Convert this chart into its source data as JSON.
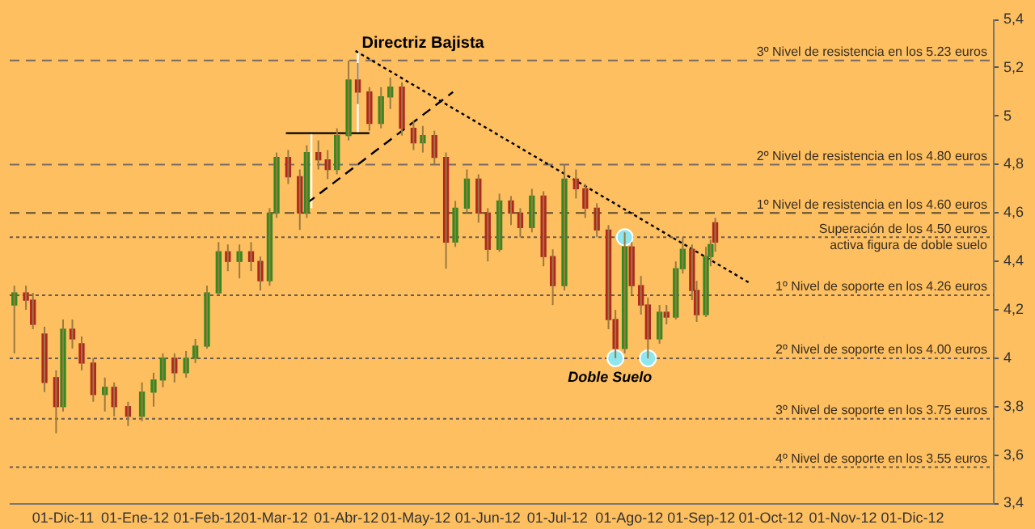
{
  "chart_data": {
    "type": "candlestick",
    "legend": false,
    "x": [
      "2011-11-10",
      "2011-11-15",
      "2011-11-18",
      "2011-11-23",
      "2011-11-28",
      "2011-12-01",
      "2011-12-05",
      "2011-12-09",
      "2011-12-14",
      "2011-12-19",
      "2011-12-23",
      "2011-12-29",
      "2012-01-04",
      "2012-01-09",
      "2012-01-13",
      "2012-01-18",
      "2012-01-23",
      "2012-01-27",
      "2012-02-01",
      "2012-02-06",
      "2012-02-10",
      "2012-02-15",
      "2012-02-20",
      "2012-02-24",
      "2012-02-28",
      "2012-03-02",
      "2012-03-07",
      "2012-03-12",
      "2012-03-15",
      "2012-03-20",
      "2012-03-24",
      "2012-03-28",
      "2012-04-02",
      "2012-04-06",
      "2012-04-11",
      "2012-04-16",
      "2012-04-20",
      "2012-04-25",
      "2012-04-30",
      "2012-05-04",
      "2012-05-09",
      "2012-05-14",
      "2012-05-18",
      "2012-05-23",
      "2012-05-28",
      "2012-06-01",
      "2012-06-06",
      "2012-06-11",
      "2012-06-15",
      "2012-06-20",
      "2012-06-25",
      "2012-06-29",
      "2012-07-04",
      "2012-07-09",
      "2012-07-13",
      "2012-07-18",
      "2012-07-23",
      "2012-07-26",
      "2012-07-30",
      "2012-08-02",
      "2012-08-06",
      "2012-08-09",
      "2012-08-14",
      "2012-08-17",
      "2012-08-21",
      "2012-08-24",
      "2012-08-28",
      "2012-08-30",
      "2012-09-03",
      "2012-09-05",
      "2012-09-07"
    ],
    "ohlc": [
      [
        4.22,
        4.3,
        4.02,
        4.27
      ],
      [
        4.27,
        4.3,
        4.2,
        4.24
      ],
      [
        4.24,
        4.27,
        4.12,
        4.14
      ],
      [
        4.1,
        4.13,
        3.86,
        3.9
      ],
      [
        3.92,
        3.95,
        3.69,
        3.8
      ],
      [
        3.8,
        4.16,
        3.78,
        4.12
      ],
      [
        4.12,
        4.16,
        4.04,
        4.08
      ],
      [
        4.06,
        4.09,
        3.95,
        3.98
      ],
      [
        3.98,
        4.0,
        3.82,
        3.85
      ],
      [
        3.85,
        3.92,
        3.78,
        3.88
      ],
      [
        3.88,
        3.9,
        3.76,
        3.8
      ],
      [
        3.8,
        3.82,
        3.72,
        3.76
      ],
      [
        3.76,
        3.9,
        3.74,
        3.86
      ],
      [
        3.86,
        3.94,
        3.8,
        3.91
      ],
      [
        3.91,
        4.02,
        3.88,
        4.0
      ],
      [
        4.0,
        4.02,
        3.9,
        3.94
      ],
      [
        3.94,
        4.03,
        3.92,
        4.0
      ],
      [
        4.0,
        4.08,
        3.98,
        4.05
      ],
      [
        4.05,
        4.3,
        4.04,
        4.27
      ],
      [
        4.27,
        4.48,
        4.26,
        4.44
      ],
      [
        4.44,
        4.47,
        4.36,
        4.4
      ],
      [
        4.4,
        4.47,
        4.33,
        4.44
      ],
      [
        4.44,
        4.48,
        4.36,
        4.4
      ],
      [
        4.4,
        4.42,
        4.28,
        4.32
      ],
      [
        4.32,
        4.62,
        4.3,
        4.6
      ],
      [
        4.6,
        4.85,
        4.58,
        4.83
      ],
      [
        4.83,
        4.86,
        4.72,
        4.75
      ],
      [
        4.75,
        4.78,
        4.53,
        4.6
      ],
      [
        4.6,
        4.88,
        4.58,
        4.85
      ],
      [
        4.85,
        4.9,
        4.78,
        4.82
      ],
      [
        4.82,
        4.86,
        4.74,
        4.78
      ],
      [
        4.78,
        4.95,
        4.76,
        4.92
      ],
      [
        4.92,
        5.23,
        4.9,
        5.15
      ],
      [
        5.15,
        5.22,
        5.05,
        5.1
      ],
      [
        5.1,
        5.12,
        4.94,
        4.97
      ],
      [
        4.97,
        5.12,
        4.95,
        5.08
      ],
      [
        5.08,
        5.16,
        5.03,
        5.12
      ],
      [
        5.12,
        5.14,
        4.92,
        4.95
      ],
      [
        4.95,
        4.98,
        4.86,
        4.89
      ],
      [
        4.89,
        4.96,
        4.85,
        4.92
      ],
      [
        4.92,
        4.94,
        4.8,
        4.83
      ],
      [
        4.83,
        4.85,
        4.37,
        4.48
      ],
      [
        4.48,
        4.65,
        4.46,
        4.62
      ],
      [
        4.62,
        4.78,
        4.6,
        4.74
      ],
      [
        4.74,
        4.76,
        4.56,
        4.6
      ],
      [
        4.6,
        4.62,
        4.4,
        4.45
      ],
      [
        4.45,
        4.68,
        4.44,
        4.65
      ],
      [
        4.65,
        4.67,
        4.55,
        4.6
      ],
      [
        4.6,
        4.62,
        4.5,
        4.54
      ],
      [
        4.54,
        4.7,
        4.52,
        4.67
      ],
      [
        4.67,
        4.69,
        4.38,
        4.42
      ],
      [
        4.42,
        4.45,
        4.22,
        4.3
      ],
      [
        4.3,
        4.8,
        4.28,
        4.74
      ],
      [
        4.74,
        4.78,
        4.66,
        4.7
      ],
      [
        4.7,
        4.72,
        4.58,
        4.62
      ],
      [
        4.62,
        4.64,
        4.5,
        4.53
      ],
      [
        4.53,
        4.55,
        4.12,
        4.16
      ],
      [
        4.16,
        4.2,
        4.0,
        4.04
      ],
      [
        4.04,
        4.52,
        4.02,
        4.46
      ],
      [
        4.46,
        4.48,
        4.26,
        4.3
      ],
      [
        4.3,
        4.34,
        4.18,
        4.22
      ],
      [
        4.22,
        4.25,
        4.0,
        4.08
      ],
      [
        4.08,
        4.22,
        4.06,
        4.19
      ],
      [
        4.19,
        4.22,
        4.14,
        4.17
      ],
      [
        4.17,
        4.4,
        4.16,
        4.37
      ],
      [
        4.37,
        4.5,
        4.35,
        4.45
      ],
      [
        4.45,
        4.47,
        4.24,
        4.28
      ],
      [
        4.28,
        4.32,
        4.15,
        4.18
      ],
      [
        4.18,
        4.46,
        4.17,
        4.42
      ],
      [
        4.42,
        4.49,
        4.38,
        4.47
      ],
      [
        4.56,
        4.58,
        4.44,
        4.48
      ]
    ],
    "colors": [
      "#2f8a1f",
      "#b3261e",
      "#b3261e",
      "#b3261e",
      "#b3261e",
      "#2f8a1f",
      "#b3261e",
      "#b3261e",
      "#b3261e",
      "#2f8a1f",
      "#b3261e",
      "#b3261e",
      "#2f8a1f",
      "#2f8a1f",
      "#2f8a1f",
      "#b3261e",
      "#2f8a1f",
      "#2f8a1f",
      "#2f8a1f",
      "#2f8a1f",
      "#b3261e",
      "#2f8a1f",
      "#b3261e",
      "#b3261e",
      "#2f8a1f",
      "#2f8a1f",
      "#b3261e",
      "#b3261e",
      "#2f8a1f",
      "#b3261e",
      "#b3261e",
      "#2f8a1f",
      "#2f8a1f",
      "#b3261e",
      "#b3261e",
      "#2f8a1f",
      "#2f8a1f",
      "#b3261e",
      "#b3261e",
      "#2f8a1f",
      "#b3261e",
      "#b3261e",
      "#2f8a1f",
      "#2f8a1f",
      "#b3261e",
      "#b3261e",
      "#2f8a1f",
      "#b3261e",
      "#b3261e",
      "#2f8a1f",
      "#b3261e",
      "#b3261e",
      "#2f8a1f",
      "#b3261e",
      "#b3261e",
      "#b3261e",
      "#b3261e",
      "#b3261e",
      "#2f8a1f",
      "#b3261e",
      "#b3261e",
      "#b3261e",
      "#2f8a1f",
      "#b3261e",
      "#2f8a1f",
      "#2f8a1f",
      "#b3261e",
      "#b3261e",
      "#2f8a1f",
      "#2f8a1f",
      "#b3261e"
    ],
    "series": [
      {
        "type": "line",
        "x": [
          "2012-04-05",
          "2012-09-22"
        ],
        "values": [
          5.27,
          4.31
        ],
        "color": "#000000",
        "line_style": "dotted"
      },
      {
        "type": "line",
        "x": [
          "2012-03-15",
          "2012-05-17"
        ],
        "values": [
          4.64,
          5.1
        ],
        "color": "#000000",
        "line_style": "dashed"
      },
      {
        "type": "line",
        "x": [
          "2012-03-06",
          "2012-04-11"
        ],
        "values": [
          4.93,
          4.93
        ],
        "color": "#000000",
        "line_style": "solid"
      },
      {
        "type": "line",
        "x": [
          "2012-03-17",
          "2012-03-17"
        ],
        "values": [
          4.62,
          4.93
        ],
        "color": "#ffffff",
        "line_style": "solid"
      },
      {
        "type": "line",
        "x": [
          "2012-04-06",
          "2012-04-06"
        ],
        "values": [
          4.93,
          5.27
        ],
        "color": "#ffffff",
        "line_style": "solid"
      },
      {
        "type": "scatter",
        "x": [
          "2012-07-26",
          "2012-07-30",
          "2012-08-09"
        ],
        "values": [
          4.0,
          4.5,
          4.0
        ],
        "color": "#8fe6ee",
        "marker": "circle"
      }
    ],
    "ref_lines": [
      {
        "axis": "y",
        "value": 5.23,
        "label": "3º Nivel de resistencia en los 5.23 euros",
        "color": "#7a6a66",
        "line_style": "dashed"
      },
      {
        "axis": "y",
        "value": 4.8,
        "label": "2º Nivel de resistencia en los 4.80 euros",
        "color": "#7a6a66",
        "line_style": "dashed"
      },
      {
        "axis": "y",
        "value": 4.6,
        "label": "1º Nivel de resistencia en los 4.60 euros",
        "color": "#5e4b2e",
        "line_style": "dashed"
      },
      {
        "axis": "y",
        "value": 4.5,
        "label": "Superación de los 4.50 euros activa figura de doble suelo",
        "color": "#6a5a50",
        "line_style": "dotted"
      },
      {
        "axis": "y",
        "value": 4.26,
        "label": "1º Nivel de soporte en los 4.26 euros",
        "color": "#6a5a50",
        "line_style": "dotted"
      },
      {
        "axis": "y",
        "value": 4.0,
        "label": "2º Nivel de soporte en los 4.00 euros",
        "color": "#6a5a50",
        "line_style": "dotted"
      },
      {
        "axis": "y",
        "value": 3.75,
        "label": "3º Nivel de soporte en los 3.75 euros",
        "color": "#6a5a50",
        "line_style": "dotted"
      },
      {
        "axis": "y",
        "value": 3.55,
        "label": "4º Nivel de soporte en los 3.55 euros",
        "color": "#6a5a50",
        "line_style": "dotted"
      }
    ],
    "annotations": [
      "Directriz Bajista",
      "Doble Suelo"
    ],
    "xlim": [
      "2011-11-08",
      "2013-01-05"
    ],
    "xticks": [
      {
        "value": "2011-12-01",
        "label": "01-Dic-11"
      },
      {
        "value": "2012-01-01",
        "label": "01-Ene-12"
      },
      {
        "value": "2012-02-01",
        "label": "01-Feb-12"
      },
      {
        "value": "2012-03-01",
        "label": "01-Mar-12"
      },
      {
        "value": "2012-04-01",
        "label": "01-Abr-12"
      },
      {
        "value": "2012-05-01",
        "label": "01-May-12"
      },
      {
        "value": "2012-06-01",
        "label": "01-Jun-12"
      },
      {
        "value": "2012-07-01",
        "label": "01-Jul-12"
      },
      {
        "value": "2012-08-01",
        "label": "01-Ago-12"
      },
      {
        "value": "2012-09-01",
        "label": "01-Sep-12"
      },
      {
        "value": "2012-10-01",
        "label": "01-Oct-12"
      },
      {
        "value": "2012-11-01",
        "label": "01-Nov-12"
      },
      {
        "value": "2012-12-01",
        "label": "01-Dic-12"
      }
    ],
    "ylim": [
      3.4,
      5.4
    ],
    "yticks": [
      {
        "value": 3.4,
        "label": "3,4"
      },
      {
        "value": 3.6,
        "label": "3,6"
      },
      {
        "value": 3.8,
        "label": "3,8"
      },
      {
        "value": 4,
        "label": "4"
      },
      {
        "value": 4.2,
        "label": "4,2"
      },
      {
        "value": 4.4,
        "label": "4,4"
      },
      {
        "value": 4.6,
        "label": "4,6"
      },
      {
        "value": 4.8,
        "label": "4,8"
      },
      {
        "value": 5,
        "label": "5"
      },
      {
        "value": 5.2,
        "label": "5,2"
      },
      {
        "value": 5.4,
        "label": "5,4"
      }
    ]
  }
}
